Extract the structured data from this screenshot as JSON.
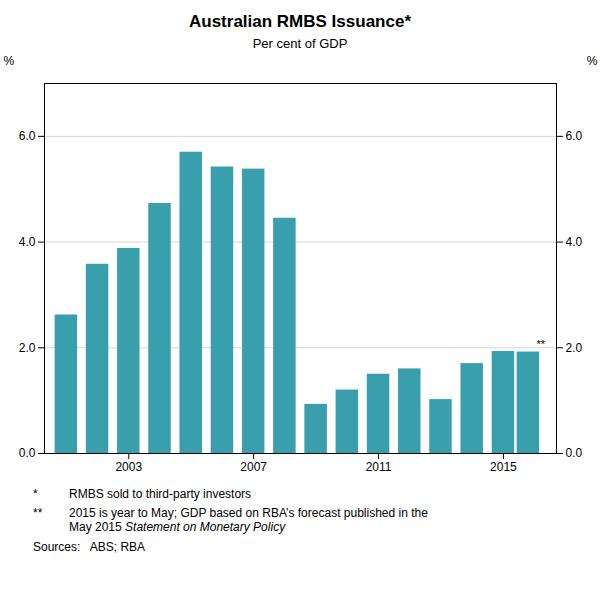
{
  "chart_data": {
    "type": "bar",
    "title": "Australian RMBS Issuance*",
    "subtitle": "Per cent of GDP",
    "x": [
      2001,
      2002,
      2003,
      2004,
      2005,
      2006,
      2007,
      2008,
      2009,
      2010,
      2011,
      2012,
      2013,
      2014,
      2015,
      2015.8
    ],
    "values": [
      2.62,
      3.58,
      3.88,
      4.73,
      5.7,
      5.42,
      5.38,
      4.45,
      0.93,
      1.2,
      1.5,
      1.6,
      1.02,
      1.7,
      1.93,
      1.92
    ],
    "color": "#3a9fad",
    "xlim": [
      2000.3,
      2016.7
    ],
    "xticks": [
      2003,
      2007,
      2011,
      2015
    ],
    "ylim": [
      0,
      7
    ],
    "yticks": [
      0,
      2,
      4,
      6
    ],
    "ylabel": "%",
    "y2label": "%",
    "y2ticks": [
      0,
      2,
      4,
      6
    ],
    "grid": true,
    "annotation": "**",
    "footnotes": [
      {
        "marker": "*",
        "lines": [
          [
            "RMBS sold to third-party investors"
          ]
        ]
      },
      {
        "marker": "**",
        "lines": [
          [
            "2015 is year to May; GDP based on RBA’s forecast published in the"
          ],
          [
            "May 2015 ",
            "Statement on Monetary Policy"
          ]
        ]
      }
    ],
    "source": "Sources:   ABS; RBA"
  }
}
